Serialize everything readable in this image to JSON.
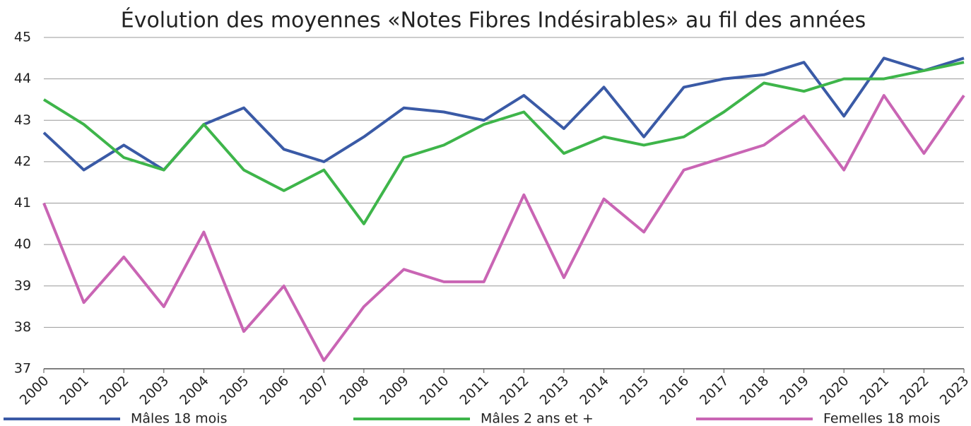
{
  "chart_data": {
    "type": "line",
    "title": "Évolution des moyennes «Notes Fibres Indésirables» au fil des années",
    "categories": [
      "2000",
      "2001",
      "2002",
      "2003",
      "2004",
      "2005",
      "2006",
      "2007",
      "2008",
      "2009",
      "2010",
      "2011",
      "2012",
      "2013",
      "2014",
      "2015",
      "2016",
      "2017",
      "2018",
      "2019",
      "2020",
      "2021",
      "2022",
      "2023"
    ],
    "series": [
      {
        "name": "Mâles 18 mois",
        "color": "#3a5aa6",
        "values": [
          42.7,
          41.8,
          42.4,
          41.8,
          42.9,
          43.3,
          42.3,
          42.0,
          42.6,
          43.3,
          43.2,
          43.0,
          43.6,
          42.8,
          43.8,
          42.6,
          43.8,
          44.0,
          44.1,
          44.4,
          43.1,
          44.5,
          44.2,
          44.5
        ]
      },
      {
        "name": "Mâles 2 ans et +",
        "color": "#3eb54a",
        "values": [
          43.5,
          42.9,
          42.1,
          41.8,
          42.9,
          41.8,
          41.3,
          41.8,
          40.5,
          42.1,
          42.4,
          42.9,
          43.2,
          42.2,
          42.6,
          42.4,
          42.6,
          43.2,
          43.9,
          43.7,
          44.0,
          44.0,
          44.2,
          44.4
        ]
      },
      {
        "name": "Femelles 18 mois",
        "color": "#c965b4",
        "values": [
          41.0,
          38.6,
          39.7,
          38.5,
          40.3,
          37.9,
          39.0,
          37.2,
          38.5,
          39.4,
          39.1,
          39.1,
          41.2,
          39.2,
          41.1,
          40.3,
          41.8,
          42.1,
          42.4,
          43.1,
          41.8,
          43.6,
          42.2,
          43.6
        ]
      }
    ],
    "ylim": [
      37,
      45
    ],
    "yticks": [
      37,
      38,
      39,
      40,
      41,
      42,
      43,
      44,
      45
    ],
    "grid": true,
    "legend": "bottom"
  }
}
